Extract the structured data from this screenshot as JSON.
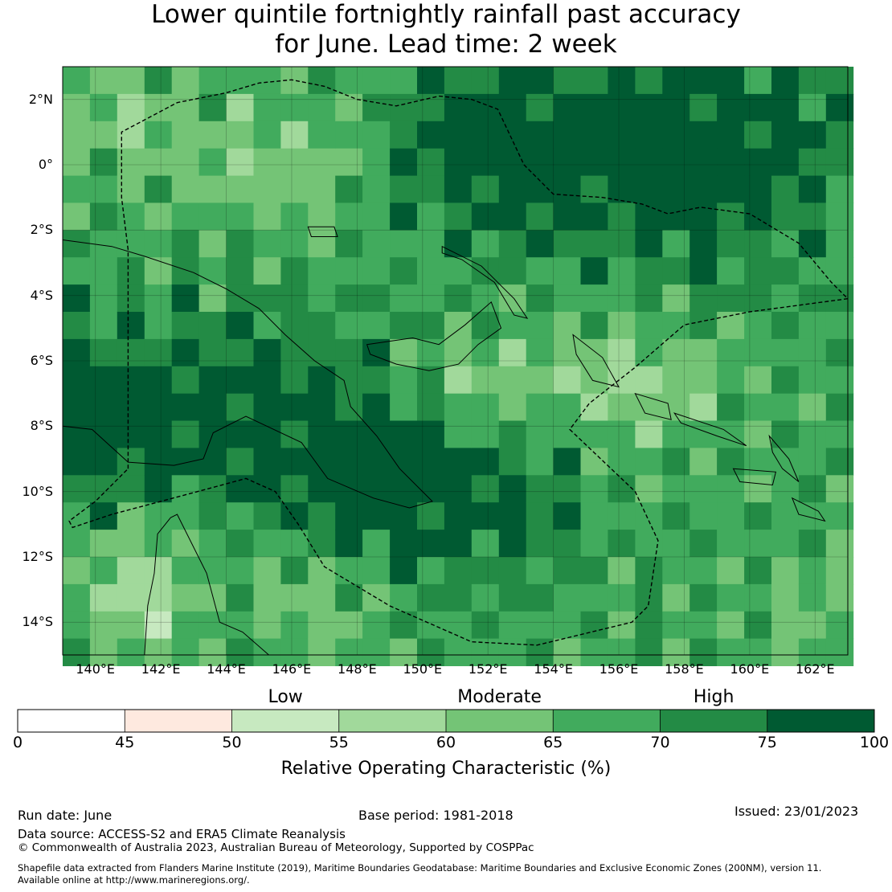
{
  "title": {
    "line1": "Lower quintile fortnightly rainfall past accuracy",
    "line2": "for June. Lead time: 2 week"
  },
  "map": {
    "lon_range": [
      139,
      163
    ],
    "lat_range": [
      -15,
      3
    ],
    "x_ticks": [
      {
        "lon": 140,
        "label": "140°E"
      },
      {
        "lon": 142,
        "label": "142°E"
      },
      {
        "lon": 144,
        "label": "144°E"
      },
      {
        "lon": 146,
        "label": "146°E"
      },
      {
        "lon": 148,
        "label": "148°E"
      },
      {
        "lon": 150,
        "label": "150°E"
      },
      {
        "lon": 152,
        "label": "152°E"
      },
      {
        "lon": 154,
        "label": "154°E"
      },
      {
        "lon": 156,
        "label": "156°E"
      },
      {
        "lon": 158,
        "label": "158°E"
      },
      {
        "lon": 160,
        "label": "160°E"
      },
      {
        "lon": 162,
        "label": "162°E"
      }
    ],
    "y_ticks": [
      {
        "lat": 2,
        "label": "2°N"
      },
      {
        "lat": 0,
        "label": "0°"
      },
      {
        "lat": -2,
        "label": "2°S"
      },
      {
        "lat": -4,
        "label": "4°S"
      },
      {
        "lat": -6,
        "label": "6°S"
      },
      {
        "lat": -8,
        "label": "8°S"
      },
      {
        "lat": -10,
        "label": "10°S"
      },
      {
        "lat": -12,
        "label": "12°S"
      },
      {
        "lat": -14,
        "label": "14°S"
      }
    ],
    "grid_lines": true,
    "coastline_color": "#000000",
    "eez_boundary_style": "dashed"
  },
  "colorbar": {
    "title": "Relative Operating Characteristic (%)",
    "boundaries": [
      0,
      45,
      50,
      55,
      60,
      65,
      70,
      75,
      100
    ],
    "colors": [
      "#ffffff",
      "#fee9df",
      "#c7e9c0",
      "#a1d99b",
      "#74c476",
      "#41ab5d",
      "#238b45",
      "#005a32"
    ],
    "categories": [
      {
        "label": "Low",
        "at": 52.5
      },
      {
        "label": "Moderate",
        "at": 62.5
      },
      {
        "label": "High",
        "at": 72.5
      }
    ]
  },
  "footer": {
    "run_date": "Run date: June",
    "base_period": "Base period: 1981-2018",
    "issued": "Issued: 23/01/2023",
    "data_source": "Data source: ACCESS-S2 and ERA5 Climate Reanalysis",
    "copyright": "© Commonwealth of Australia 2023, Australian Bureau of Meteorology, Supported by COSPPac",
    "shapefile_line1": "Shapefile data extracted from Flanders Marine Institute (2019), Maritime Boundaries Geodatabase: Maritime Boundaries and Exclusive Economic Zones (200NM), version 11.",
    "shapefile_line2": "Available online at http://www.marineregions.org/."
  }
}
